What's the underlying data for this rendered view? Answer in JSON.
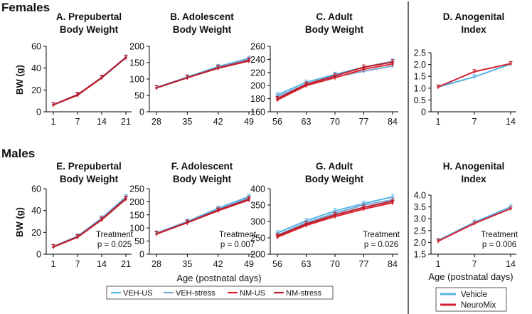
{
  "section_labels": {
    "females": "Females",
    "males": "Males"
  },
  "y_label": "BW (g)",
  "x_label_main": "Age (postnatal days)",
  "x_label_agi": "Age (postnatal days)",
  "legend_main": [
    {
      "name": "VEH-US",
      "color": "#55b4e6"
    },
    {
      "name": "VEH-stress",
      "color": "#7aa8d6"
    },
    {
      "name": "NM-US",
      "color": "#e0212c"
    },
    {
      "name": "NM-stress",
      "color": "#b81c2c"
    }
  ],
  "legend_agi": [
    {
      "name": "Vehicle",
      "color": "#55b4e6"
    },
    {
      "name": "NeuroMix",
      "color": "#d42030"
    }
  ],
  "chart_data": [
    {
      "id": "A",
      "type": "line",
      "title": "A. Prepubertal",
      "title2": "Body Weight",
      "categories": [
        "1",
        "7",
        "14",
        "21"
      ],
      "ylim": [
        0,
        60
      ],
      "yticks": [
        0,
        20,
        40,
        60
      ],
      "series": [
        {
          "name": "VEH-US",
          "values": [
            6.5,
            15.5,
            31.5,
            50
          ]
        },
        {
          "name": "VEH-stress",
          "values": [
            6.5,
            15.8,
            31,
            49.5
          ]
        },
        {
          "name": "NM-US",
          "values": [
            6.3,
            15.2,
            31.2,
            49.8
          ]
        },
        {
          "name": "NM-stress",
          "values": [
            6.4,
            15.6,
            31.4,
            49.6
          ]
        }
      ]
    },
    {
      "id": "B",
      "type": "line",
      "title": "B. Adolescent",
      "title2": "Body Weight",
      "categories": [
        "28",
        "35",
        "42",
        "49"
      ],
      "ylim": [
        0,
        200
      ],
      "yticks": [
        0,
        50,
        100,
        150,
        200
      ],
      "series": [
        {
          "name": "VEH-US",
          "values": [
            74,
            106,
            138,
            163
          ]
        },
        {
          "name": "VEH-stress",
          "values": [
            73,
            105,
            136,
            160
          ]
        },
        {
          "name": "NM-US",
          "values": [
            73,
            104,
            133,
            155
          ]
        },
        {
          "name": "NM-stress",
          "values": [
            73,
            104,
            134,
            157
          ]
        }
      ]
    },
    {
      "id": "C",
      "type": "line",
      "title": "C. Adult",
      "title2": "Body Weight",
      "categories": [
        "56",
        "63",
        "70",
        "77",
        "84"
      ],
      "ylim": [
        160,
        260
      ],
      "yticks": [
        160,
        180,
        200,
        220,
        240,
        260
      ],
      "series": [
        {
          "name": "VEH-US",
          "values": [
            186,
            205,
            217,
            228,
            237
          ]
        },
        {
          "name": "VEH-stress",
          "values": [
            183,
            202,
            213,
            222,
            230
          ]
        },
        {
          "name": "NM-US",
          "values": [
            178,
            200,
            212,
            225,
            233
          ]
        },
        {
          "name": "NM-stress",
          "values": [
            180,
            202,
            215,
            228,
            236
          ]
        }
      ]
    },
    {
      "id": "D",
      "type": "line",
      "title": "D. Anogenital",
      "title2": "Index",
      "categories": [
        "1",
        "7",
        "14"
      ],
      "ylim": [
        0,
        2.5
      ],
      "yticks": [
        "0",
        "0.5",
        "1.0",
        "1.5",
        "2.0",
        "2.5"
      ],
      "series": [
        {
          "name": "Vehicle",
          "values": [
            1.05,
            1.48,
            2.02
          ]
        },
        {
          "name": "NeuroMix",
          "values": [
            1.05,
            1.7,
            2.04
          ]
        }
      ]
    },
    {
      "id": "E",
      "type": "line",
      "title": "E. Prepubertal",
      "title2": "Body Weight",
      "categories": [
        "1",
        "7",
        "14",
        "21"
      ],
      "ylim": [
        0,
        60
      ],
      "yticks": [
        0,
        20,
        40,
        60
      ],
      "annotation": {
        "line1": "Treatment",
        "line2": "p = 0.025"
      },
      "series": [
        {
          "name": "VEH-US",
          "values": [
            7,
            16.5,
            33,
            52.5
          ]
        },
        {
          "name": "VEH-stress",
          "values": [
            6.8,
            16.2,
            32.5,
            52
          ]
        },
        {
          "name": "NM-US",
          "values": [
            6.6,
            15.6,
            31.5,
            50.5
          ]
        },
        {
          "name": "NM-stress",
          "values": [
            6.7,
            15.8,
            31.8,
            51
          ]
        }
      ]
    },
    {
      "id": "F",
      "type": "line",
      "title": "F. Adolescent",
      "title2": "Body Weight",
      "categories": [
        "28",
        "35",
        "42",
        "49"
      ],
      "ylim": [
        0,
        250
      ],
      "yticks": [
        0,
        50,
        100,
        150,
        200,
        250
      ],
      "annotation": {
        "line1": "Treatment",
        "line2": "p = 0.007"
      },
      "series": [
        {
          "name": "VEH-US",
          "values": [
            80,
            125,
            175,
            220
          ]
        },
        {
          "name": "VEH-stress",
          "values": [
            79,
            123,
            171,
            215
          ]
        },
        {
          "name": "NM-US",
          "values": [
            77,
            120,
            166,
            207
          ]
        },
        {
          "name": "NM-stress",
          "values": [
            78,
            121,
            168,
            210
          ]
        }
      ]
    },
    {
      "id": "G",
      "type": "line",
      "title": "G. Adult",
      "title2": "Body Weight",
      "categories": [
        "56",
        "63",
        "70",
        "77",
        "84"
      ],
      "ylim": [
        200,
        400
      ],
      "yticks": [
        200,
        250,
        300,
        350,
        400
      ],
      "annotation": {
        "line1": "Treatment",
        "line2": "p = 0.026"
      },
      "series": [
        {
          "name": "VEH-US",
          "values": [
            265,
            302,
            332,
            355,
            375
          ]
        },
        {
          "name": "VEH-stress",
          "values": [
            258,
            296,
            325,
            350,
            366
          ]
        },
        {
          "name": "NM-US",
          "values": [
            252,
            288,
            315,
            338,
            357
          ]
        },
        {
          "name": "NM-stress",
          "values": [
            256,
            292,
            320,
            343,
            362
          ]
        }
      ]
    },
    {
      "id": "H",
      "type": "line",
      "title": "H. Anogenital",
      "title2": "Index",
      "categories": [
        "1",
        "7",
        "14"
      ],
      "ylim": [
        1.5,
        4.0
      ],
      "yticks": [
        "1.5",
        "2.0",
        "2.5",
        "3.0",
        "3.5",
        "4.0"
      ],
      "annotation": {
        "line1": "Treatment",
        "line2": "p = 0.006"
      },
      "series": [
        {
          "name": "Vehicle",
          "values": [
            2.08,
            2.85,
            3.5
          ]
        },
        {
          "name": "NeuroMix",
          "values": [
            2.05,
            2.8,
            3.43
          ]
        }
      ]
    }
  ]
}
